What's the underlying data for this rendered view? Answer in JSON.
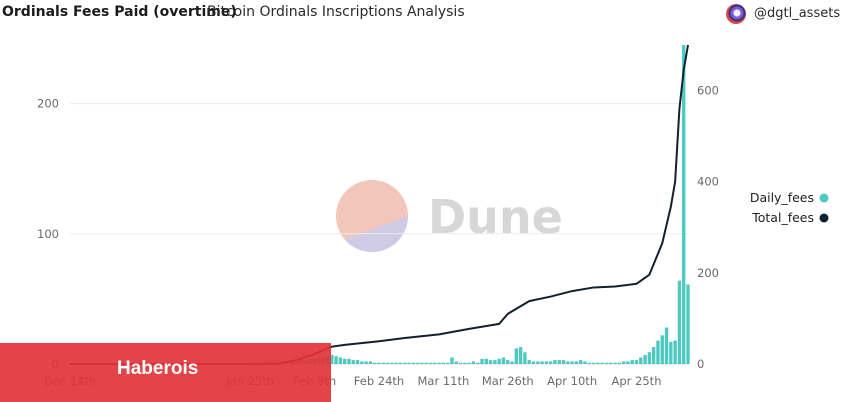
{
  "header": {
    "title": "Ordinals Fees Paid (overtime)",
    "subtitle": "Bitcoin Ordinals Inscriptions Analysis",
    "author": "@dgtl_assets"
  },
  "watermark": {
    "text": "Dune"
  },
  "overlay": {
    "text": "Haberois"
  },
  "colors": {
    "daily": "#4cc9c0",
    "total": "#13202e"
  },
  "chart_data": {
    "type": "bar",
    "title": "Ordinals Fees Paid (overtime)",
    "subtitle": "Bitcoin Ordinals Inscriptions Analysis",
    "x_tick_labels": [
      "Dec 14th",
      "Jan 25th",
      "Feb 9th",
      "Feb 24th",
      "Mar 11th",
      "Mar 26th",
      "Apr 10th",
      "Apr 25th"
    ],
    "y_left": {
      "ylim": [
        0,
        245
      ],
      "ticks": [
        0,
        100,
        200
      ]
    },
    "y_right": {
      "ylim": [
        0,
        700
      ],
      "ticks": [
        0,
        200,
        400,
        600
      ]
    },
    "legend": {
      "position": "right",
      "entries": [
        "Daily_fees",
        "Total_fees"
      ]
    },
    "grid": true,
    "series": [
      {
        "name": "Daily_fees",
        "type": "bar",
        "axis": "left",
        "points": [
          [
            "Feb 2nd",
            1
          ],
          [
            "Feb 4th",
            2
          ],
          [
            "Feb 5th",
            2
          ],
          [
            "Feb 6th",
            3
          ],
          [
            "Feb 7th",
            3
          ],
          [
            "Feb 8th",
            4
          ],
          [
            "Feb 9th",
            4
          ],
          [
            "Feb 10th",
            5
          ],
          [
            "Feb 11th",
            5
          ],
          [
            "Feb 12th",
            6
          ],
          [
            "Feb 13th",
            7
          ],
          [
            "Feb 14th",
            6
          ],
          [
            "Feb 15th",
            5
          ],
          [
            "Feb 16th",
            4
          ],
          [
            "Feb 17th",
            4
          ],
          [
            "Feb 18th",
            3
          ],
          [
            "Feb 19th",
            3
          ],
          [
            "Feb 20th",
            2
          ],
          [
            "Feb 21st",
            2
          ],
          [
            "Feb 22nd",
            2
          ],
          [
            "Feb 23rd",
            1
          ],
          [
            "Feb 24th",
            1
          ],
          [
            "Feb 25th",
            1
          ],
          [
            "Feb 26th",
            1
          ],
          [
            "Feb 27th",
            1
          ],
          [
            "Feb 28th",
            1
          ],
          [
            "Mar 1st",
            1
          ],
          [
            "Mar 2nd",
            1
          ],
          [
            "Mar 3rd",
            1
          ],
          [
            "Mar 4th",
            1
          ],
          [
            "Mar 5th",
            1
          ],
          [
            "Mar 6th",
            1
          ],
          [
            "Mar 7th",
            1
          ],
          [
            "Mar 8th",
            1
          ],
          [
            "Mar 9th",
            1
          ],
          [
            "Mar 10th",
            1
          ],
          [
            "Mar 11th",
            1
          ],
          [
            "Mar 12th",
            1
          ],
          [
            "Mar 13th",
            5
          ],
          [
            "Mar 14th",
            2
          ],
          [
            "Mar 15th",
            1
          ],
          [
            "Mar 16th",
            1
          ],
          [
            "Mar 17th",
            1
          ],
          [
            "Mar 18th",
            2
          ],
          [
            "Mar 19th",
            1
          ],
          [
            "Mar 20th",
            4
          ],
          [
            "Mar 21st",
            4
          ],
          [
            "Mar 22nd",
            3
          ],
          [
            "Mar 23rd",
            3
          ],
          [
            "Mar 24th",
            4
          ],
          [
            "Mar 25th",
            5
          ],
          [
            "Mar 26th",
            3
          ],
          [
            "Mar 27th",
            2
          ],
          [
            "Mar 28th",
            12
          ],
          [
            "Mar 29th",
            13
          ],
          [
            "Mar 30th",
            9
          ],
          [
            "Mar 31st",
            3
          ],
          [
            "Apr 1st",
            2
          ],
          [
            "Apr 2nd",
            2
          ],
          [
            "Apr 3rd",
            2
          ],
          [
            "Apr 4th",
            2
          ],
          [
            "Apr 5th",
            2
          ],
          [
            "Apr 6th",
            3
          ],
          [
            "Apr 7th",
            3
          ],
          [
            "Apr 8th",
            3
          ],
          [
            "Apr 9th",
            2
          ],
          [
            "Apr 10th",
            2
          ],
          [
            "Apr 11th",
            2
          ],
          [
            "Apr 12th",
            3
          ],
          [
            "Apr 13th",
            2
          ],
          [
            "Apr 14th",
            1
          ],
          [
            "Apr 15th",
            1
          ],
          [
            "Apr 16th",
            1
          ],
          [
            "Apr 17th",
            1
          ],
          [
            "Apr 18th",
            1
          ],
          [
            "Apr 19th",
            1
          ],
          [
            "Apr 20th",
            1
          ],
          [
            "Apr 21st",
            1
          ],
          [
            "Apr 22nd",
            2
          ],
          [
            "Apr 23rd",
            2
          ],
          [
            "Apr 24th",
            3
          ],
          [
            "Apr 25th",
            3
          ],
          [
            "Apr 26th",
            5
          ],
          [
            "Apr 27th",
            7
          ],
          [
            "Apr 28th",
            9
          ],
          [
            "Apr 29th",
            13
          ],
          [
            "Apr 30th",
            18
          ],
          [
            "May 1st",
            22
          ],
          [
            "May 2nd",
            28
          ],
          [
            "May 3rd",
            17
          ],
          [
            "May 4th",
            18
          ],
          [
            "May 5th",
            64
          ],
          [
            "May 6th",
            245
          ],
          [
            "May 7th",
            61
          ]
        ]
      },
      {
        "name": "Total_fees",
        "type": "line",
        "axis": "right",
        "points": [
          [
            "Dec 14th",
            0
          ],
          [
            "Jan 25th",
            0
          ],
          [
            "Feb 1st",
            1
          ],
          [
            "Feb 5th",
            9
          ],
          [
            "Feb 9th",
            22
          ],
          [
            "Feb 13th",
            38
          ],
          [
            "Feb 16th",
            42
          ],
          [
            "Feb 24th",
            50
          ],
          [
            "Mar 2nd",
            57
          ],
          [
            "Mar 10th",
            65
          ],
          [
            "Mar 17th",
            77
          ],
          [
            "Mar 24th",
            88
          ],
          [
            "Mar 26th",
            110
          ],
          [
            "Mar 31st",
            138
          ],
          [
            "Apr 5th",
            148
          ],
          [
            "Apr 10th",
            160
          ],
          [
            "Apr 15th",
            168
          ],
          [
            "Apr 20th",
            170
          ],
          [
            "Apr 25th",
            176
          ],
          [
            "Apr 28th",
            196
          ],
          [
            "May 1st",
            265
          ],
          [
            "May 3rd",
            345
          ],
          [
            "May 4th",
            400
          ],
          [
            "May 5th",
            560
          ],
          [
            "May 6th",
            645
          ],
          [
            "May 7th",
            700
          ]
        ]
      }
    ]
  }
}
